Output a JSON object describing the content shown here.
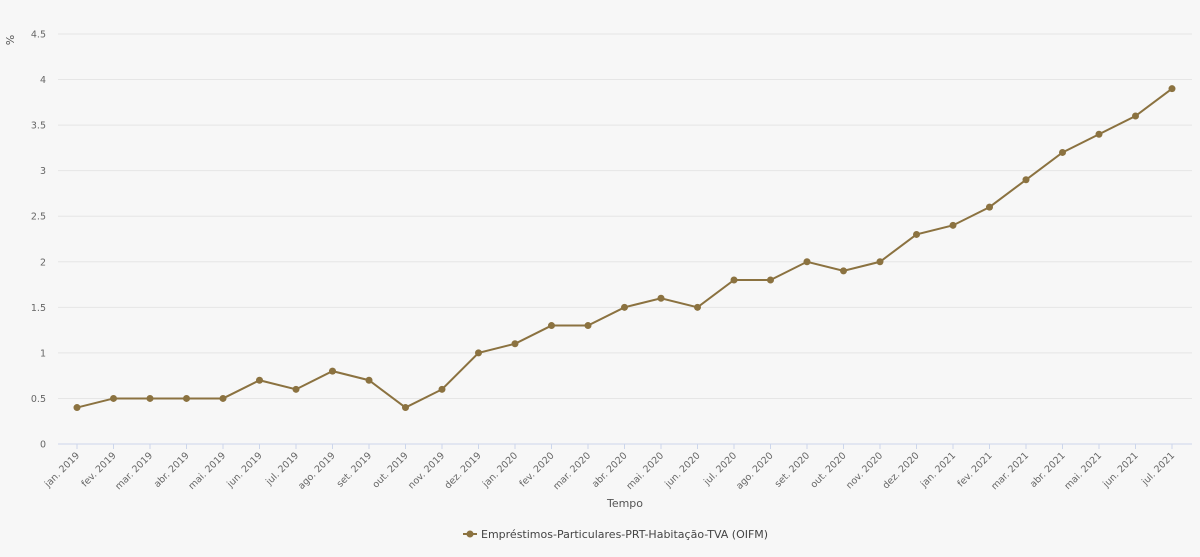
{
  "chart_data": {
    "type": "line",
    "title": "",
    "xlabel": "Tempo",
    "ylabel": "%",
    "ylim": [
      0,
      4.5
    ],
    "yticks": [
      0,
      0.5,
      1,
      1.5,
      2,
      2.5,
      3,
      3.5,
      4,
      4.5
    ],
    "ytick_labels": [
      "0",
      "0.5",
      "1",
      "1.5",
      "2",
      "2.5",
      "3",
      "3.5",
      "4",
      "4.5"
    ],
    "grid": true,
    "legend_position": "bottom-center",
    "categories": [
      "jan. 2019",
      "fev. 2019",
      "mar. 2019",
      "abr. 2019",
      "mai. 2019",
      "jun. 2019",
      "jul. 2019",
      "ago. 2019",
      "set. 2019",
      "out. 2019",
      "nov. 2019",
      "dez. 2019",
      "jan. 2020",
      "fev. 2020",
      "mar. 2020",
      "abr. 2020",
      "mai. 2020",
      "jun. 2020",
      "jul. 2020",
      "ago. 2020",
      "set. 2020",
      "out. 2020",
      "nov. 2020",
      "dez. 2020",
      "jan. 2021",
      "fev. 2021",
      "mar. 2021",
      "abr. 2021",
      "mai. 2021",
      "jun. 2021",
      "jul. 2021"
    ],
    "series": [
      {
        "name": "Empréstimos-Particulares-PRT-Habitação-TVA (OIFM)",
        "color": "#8b7240",
        "values": [
          0.4,
          0.5,
          0.5,
          0.5,
          0.5,
          0.7,
          0.6,
          0.8,
          0.7,
          0.4,
          0.6,
          1.0,
          1.1,
          1.3,
          1.3,
          1.5,
          1.6,
          1.5,
          1.8,
          1.8,
          2.0,
          1.9,
          2.0,
          2.3,
          2.4,
          2.6,
          2.9,
          3.2,
          3.4,
          3.6,
          3.9
        ]
      }
    ]
  }
}
